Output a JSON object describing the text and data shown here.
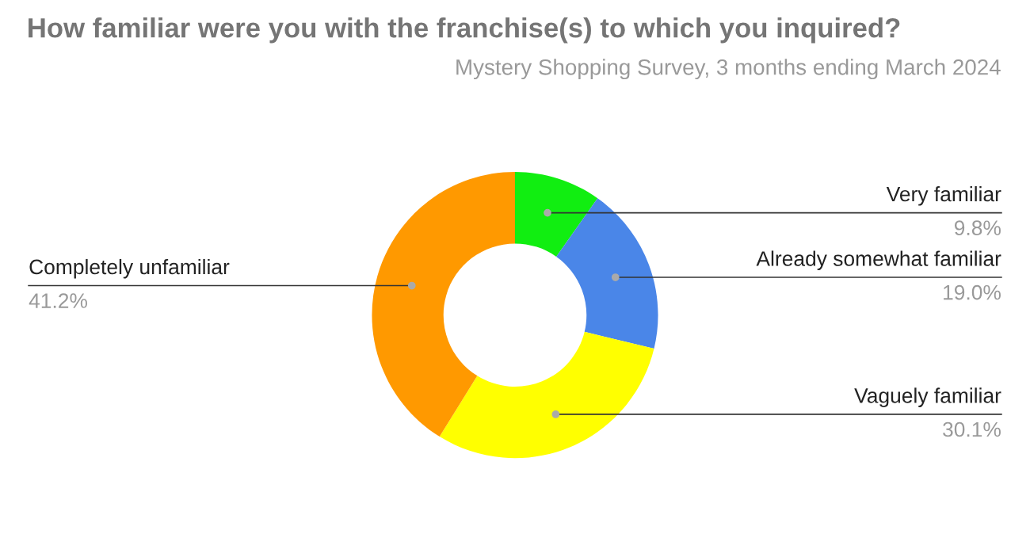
{
  "chart_data": {
    "type": "donut",
    "title": "How familiar were you with the franchise(s) to which you inquired?",
    "subtitle": "Mystery Shopping Survey, 3 months ending March 2024",
    "categories": [
      "Very familiar",
      "Already somewhat familiar",
      "Vaguely familiar",
      "Completely unfamiliar"
    ],
    "values": [
      9.8,
      19.0,
      30.1,
      41.2
    ],
    "value_labels": [
      "9.8%",
      "19.0%",
      "30.1%",
      "41.2%"
    ],
    "colors": [
      "#11ee11",
      "#4a86e8",
      "#ffff00",
      "#ff9900"
    ],
    "legend": false
  }
}
